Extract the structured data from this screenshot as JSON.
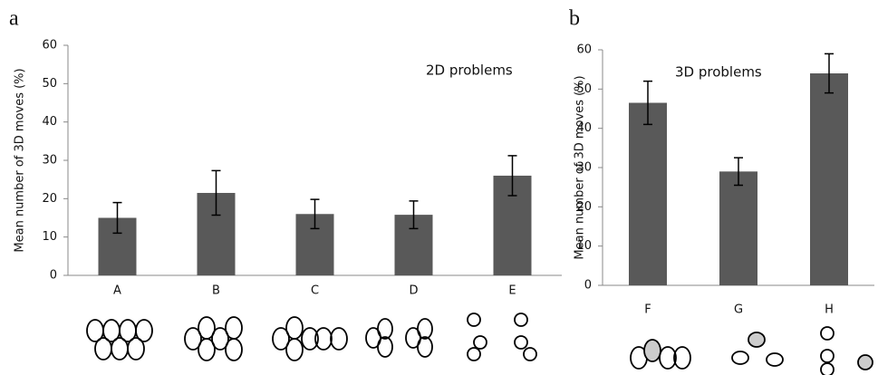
{
  "chart_data": [
    {
      "type": "bar",
      "panel_label": "a",
      "title": "2D problems",
      "ylabel": "Mean number of 3D moves (%)",
      "categories": [
        "A",
        "B",
        "C",
        "D",
        "E"
      ],
      "values": [
        15,
        21.5,
        16,
        15.8,
        26
      ],
      "errors": [
        4,
        5.8,
        3.8,
        3.6,
        5.2
      ],
      "color": "#595959",
      "ylim": [
        0,
        60
      ],
      "yticks": [
        0,
        10,
        20,
        30,
        40,
        50,
        60
      ],
      "grid": false
    },
    {
      "type": "bar",
      "panel_label": "b",
      "title": "3D problems",
      "ylabel": "Mean number of 3D moves (%)",
      "categories": [
        "F",
        "G",
        "H"
      ],
      "values": [
        46.5,
        29,
        54
      ],
      "errors": [
        5.5,
        3.5,
        5
      ],
      "color": "#595959",
      "ylim": [
        0,
        60
      ],
      "yticks": [
        0,
        10,
        20,
        30,
        40,
        50,
        60
      ],
      "grid": false
    }
  ]
}
